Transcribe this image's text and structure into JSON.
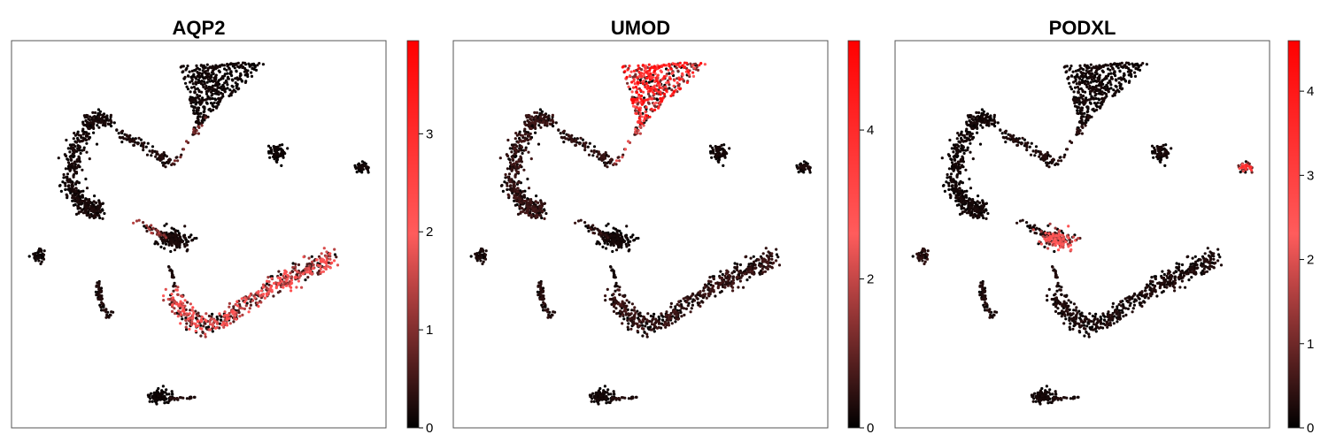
{
  "chart_data": [
    {
      "type": "scatter",
      "title": "AQP2",
      "xlabel": "",
      "ylabel": "",
      "colorbar": {
        "range": [
          0,
          3.95
        ],
        "ticks": [
          0,
          1,
          2,
          3
        ],
        "tick_labels": [
          "0",
          "1",
          "2",
          "3"
        ]
      },
      "colormap": [
        "#000000",
        "#ff5c5c",
        "#ff0000"
      ],
      "grid": false,
      "legend": "none",
      "cluster_expression": [
        0.15,
        0.2,
        0.25,
        0.9,
        0.1,
        0.15,
        0.2,
        1.2,
        2.0,
        0.15,
        0.25,
        0.1,
        0.3,
        0.2
      ]
    },
    {
      "type": "scatter",
      "title": "UMOD",
      "xlabel": "",
      "ylabel": "",
      "colorbar": {
        "range": [
          0,
          5.2
        ],
        "ticks": [
          0,
          2,
          4
        ],
        "tick_labels": [
          "0",
          "2",
          "4"
        ]
      },
      "colormap": [
        "#000000",
        "#ff5c5c",
        "#ff0000"
      ],
      "grid": false,
      "legend": "none",
      "cluster_expression": [
        4.2,
        0.6,
        0.5,
        2.2,
        0.2,
        0.3,
        0.2,
        0.5,
        0.6,
        0.3,
        0.4,
        0.2,
        0.4,
        0.2
      ]
    },
    {
      "type": "scatter",
      "title": "PODXL",
      "xlabel": "",
      "ylabel": "",
      "colorbar": {
        "range": [
          0,
          4.6
        ],
        "ticks": [
          0,
          1,
          2,
          3,
          4
        ],
        "tick_labels": [
          "0",
          "1",
          "2",
          "3",
          "4"
        ]
      },
      "colormap": [
        "#000000",
        "#ff5c5c",
        "#ff0000"
      ],
      "grid": false,
      "legend": "none",
      "cluster_expression": [
        0.2,
        0.2,
        0.3,
        0.4,
        0.2,
        3.2,
        2.2,
        0.3,
        0.3,
        0.4,
        0.3,
        0.2,
        0.3,
        0.3
      ]
    }
  ]
}
